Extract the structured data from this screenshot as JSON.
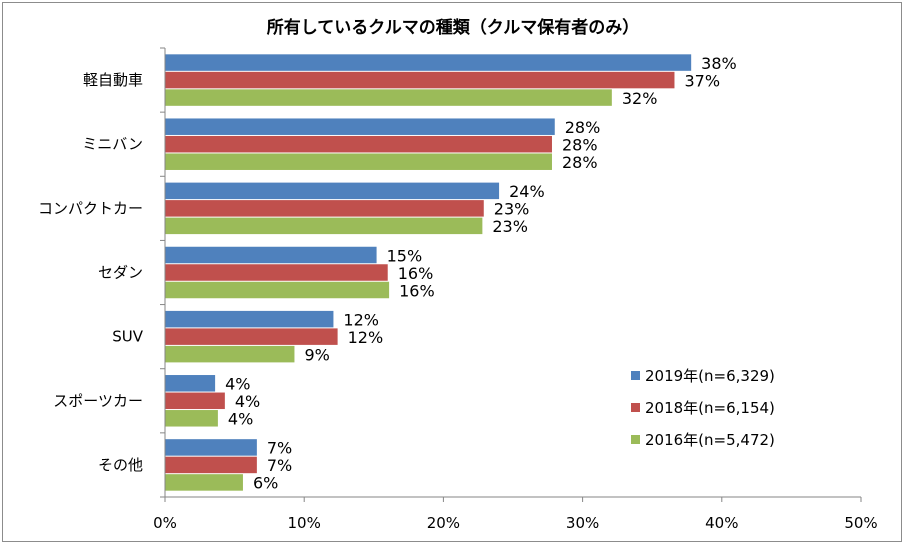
{
  "chart_data": {
    "type": "bar",
    "orientation": "horizontal",
    "title": "所有しているクルマの種類（クルマ保有者のみ）",
    "categories": [
      "軽自動車",
      "ミニバン",
      "コンパクトカー",
      "セダン",
      "SUV",
      "スポーツカー",
      "その他"
    ],
    "series": [
      {
        "name": "2019年(n=6,329)",
        "color": "#4f81bd",
        "values": [
          37.8,
          28.0,
          24.0,
          15.2,
          12.1,
          3.6,
          6.6
        ],
        "labels": [
          "38%",
          "28%",
          "24%",
          "15%",
          "12%",
          "4%",
          "7%"
        ]
      },
      {
        "name": "2018年(n=6,154)",
        "color": "#c0504d",
        "values": [
          36.6,
          27.8,
          22.9,
          16.0,
          12.4,
          4.3,
          6.6
        ],
        "labels": [
          "37%",
          "28%",
          "23%",
          "16%",
          "12%",
          "4%",
          "7%"
        ]
      },
      {
        "name": "2016年(n=5,472)",
        "color": "#9bbb59",
        "values": [
          32.1,
          27.8,
          22.8,
          16.1,
          9.3,
          3.8,
          5.6
        ],
        "labels": [
          "32%",
          "28%",
          "23%",
          "16%",
          "9%",
          "4%",
          "6%"
        ]
      }
    ],
    "xlim": [
      0,
      50
    ],
    "xticks": [
      0,
      10,
      20,
      30,
      40,
      50
    ],
    "xtick_labels": [
      "0%",
      "10%",
      "20%",
      "30%",
      "40%",
      "50%"
    ],
    "grid": false,
    "legend_position": "bottom-right"
  }
}
